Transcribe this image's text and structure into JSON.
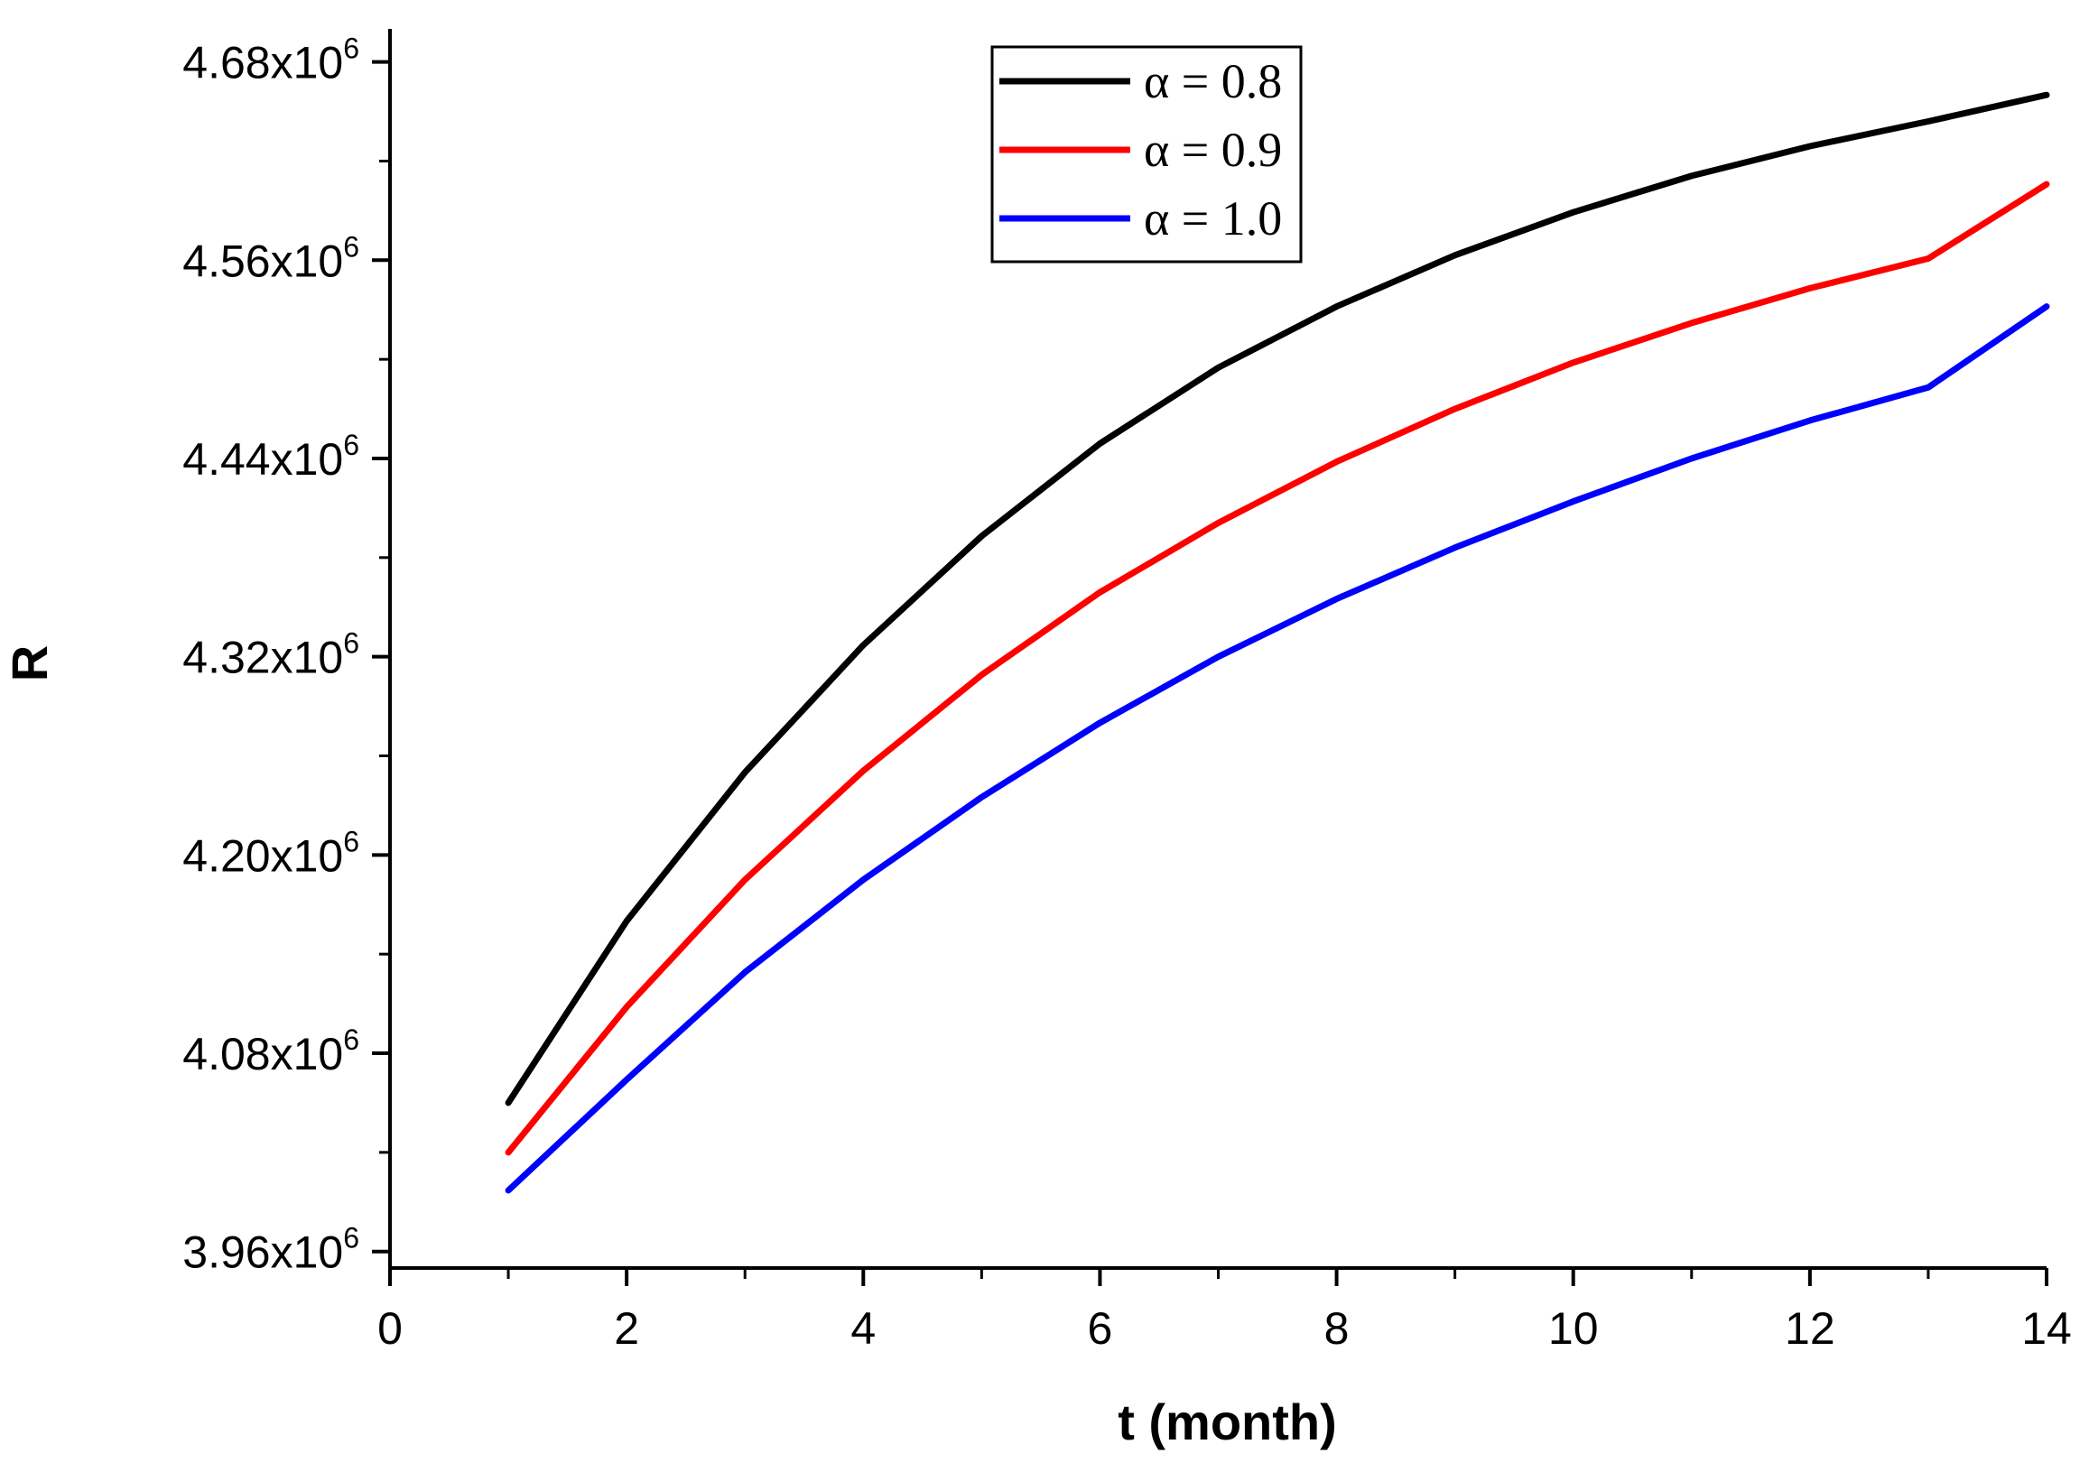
{
  "chart_data": {
    "type": "line",
    "title": "",
    "xlabel": "t  (month)",
    "ylabel": "R",
    "xlim": [
      0,
      14
    ],
    "ylim": [
      3950000,
      4700000
    ],
    "x_ticks": [
      0,
      2,
      4,
      6,
      8,
      10,
      12,
      14
    ],
    "x_tick_labels": [
      "0",
      "2",
      "4",
      "6",
      "8",
      "10",
      "12",
      "14"
    ],
    "y_ticks": [
      3960000,
      4080000,
      4200000,
      4320000,
      4440000,
      4560000,
      4680000
    ],
    "y_tick_labels": [
      {
        "mantissa": "3.96x10",
        "exponent": "6"
      },
      {
        "mantissa": "4.08x10",
        "exponent": "6"
      },
      {
        "mantissa": "4.20x10",
        "exponent": "6"
      },
      {
        "mantissa": "4.32x10",
        "exponent": "6"
      },
      {
        "mantissa": "4.44x10",
        "exponent": "6"
      },
      {
        "mantissa": "4.56x10",
        "exponent": "6"
      },
      {
        "mantissa": "4.68x10",
        "exponent": "6"
      }
    ],
    "x_minor_step": 1,
    "y_minor_step": 60000,
    "legend_position": "top-center",
    "x": [
      1,
      2,
      3,
      4,
      5,
      6,
      7,
      8,
      9,
      10,
      11,
      12,
      13,
      14
    ],
    "series": [
      {
        "name": "α = 0.8",
        "color": "#000000",
        "values": [
          4050000,
          4160000,
          4250000,
          4327000,
          4393000,
          4449000,
          4495000,
          4532000,
          4563000,
          4589000,
          4611000,
          4629000,
          4644000,
          4660000
        ]
      },
      {
        "name": "α = 0.9",
        "color": "#ff0000",
        "values": [
          4020000,
          4108000,
          4185000,
          4251000,
          4309000,
          4359000,
          4401000,
          4438000,
          4470000,
          4498000,
          4522000,
          4543000,
          4561000,
          4606000
        ]
      },
      {
        "name": "α = 1.0",
        "color": "#0000ff",
        "values": [
          3997000,
          4064000,
          4129000,
          4185000,
          4235000,
          4280000,
          4320000,
          4355000,
          4386000,
          4414000,
          4440000,
          4463000,
          4483000,
          4532000
        ]
      }
    ]
  }
}
